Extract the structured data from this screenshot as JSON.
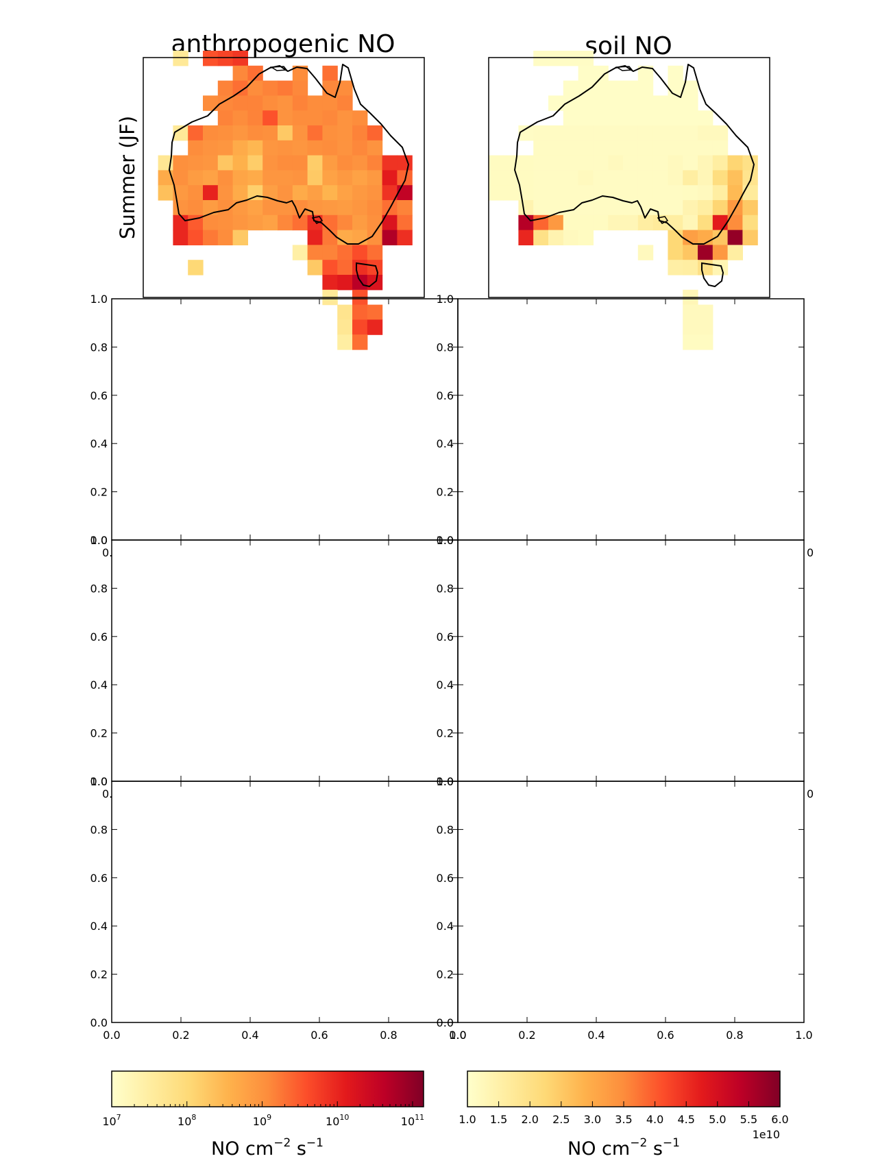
{
  "chart_data": {
    "type": "heatmap",
    "row_label": "Summer (JF)",
    "maps": [
      {
        "title": "anthropogenic NO",
        "scale": "log",
        "colormap": "YlOrRd",
        "range": [
          10000000,
          140000000000
        ],
        "colorbar": {
          "label_main": "NO cm",
          "label_sup1": "−2",
          "label_mid": " s",
          "label_sup2": "−1",
          "ticks": [
            {
              "base": "10",
              "exp": "7",
              "value": 10000000
            },
            {
              "base": "10",
              "exp": "8",
              "value": 100000000
            },
            {
              "base": "10",
              "exp": "9",
              "value": 1000000000
            },
            {
              "base": "10",
              "exp": "10",
              "value": 10000000000
            },
            {
              "base": "10",
              "exp": "11",
              "value": 100000000000
            }
          ],
          "offset": ""
        },
        "grid_note": "rows top to bottom, columns west to east; 0 = no data, 1..1000 = position on log colorbar",
        "grid": [
          [
            0,
            0,
            0,
            150,
            0,
            620,
            650,
            680,
            0,
            0,
            0,
            0,
            0,
            0,
            0,
            0,
            0,
            0,
            0,
            0
          ],
          [
            0,
            0,
            0,
            0,
            0,
            0,
            0,
            510,
            560,
            0,
            0,
            500,
            0,
            560,
            0,
            0,
            0,
            0,
            0,
            0
          ],
          [
            0,
            0,
            0,
            0,
            0,
            0,
            520,
            560,
            500,
            520,
            540,
            510,
            0,
            510,
            500,
            0,
            0,
            0,
            0,
            0
          ],
          [
            0,
            0,
            0,
            0,
            0,
            500,
            510,
            520,
            520,
            500,
            480,
            520,
            500,
            500,
            520,
            0,
            0,
            0,
            0,
            0
          ],
          [
            0,
            0,
            0,
            0,
            0,
            0,
            520,
            500,
            520,
            620,
            480,
            500,
            500,
            510,
            480,
            500,
            0,
            0,
            0,
            0
          ],
          [
            0,
            0,
            0,
            150,
            580,
            500,
            490,
            470,
            500,
            490,
            300,
            480,
            560,
            490,
            480,
            520,
            580,
            0,
            0,
            0
          ],
          [
            0,
            0,
            0,
            0,
            500,
            480,
            470,
            400,
            360,
            470,
            480,
            470,
            490,
            500,
            480,
            510,
            480,
            0,
            0,
            0
          ],
          [
            0,
            0,
            160,
            490,
            480,
            470,
            310,
            380,
            290,
            480,
            500,
            500,
            290,
            450,
            500,
            480,
            520,
            690,
            690,
            0
          ],
          [
            0,
            0,
            400,
            490,
            450,
            430,
            490,
            420,
            400,
            470,
            470,
            480,
            300,
            430,
            460,
            430,
            460,
            750,
            580,
            0
          ],
          [
            0,
            0,
            330,
            460,
            490,
            730,
            480,
            400,
            280,
            440,
            480,
            400,
            440,
            370,
            430,
            460,
            480,
            690,
            860,
            0
          ],
          [
            0,
            0,
            0,
            480,
            500,
            450,
            490,
            460,
            430,
            480,
            480,
            500,
            470,
            460,
            450,
            470,
            500,
            560,
            520,
            0
          ],
          [
            0,
            0,
            0,
            720,
            600,
            500,
            490,
            470,
            450,
            430,
            510,
            560,
            700,
            560,
            510,
            450,
            490,
            780,
            560,
            0
          ],
          [
            0,
            0,
            0,
            720,
            620,
            540,
            500,
            300,
            0,
            0,
            0,
            0,
            730,
            540,
            400,
            420,
            490,
            900,
            700,
            0
          ],
          [
            0,
            0,
            0,
            0,
            0,
            0,
            0,
            0,
            0,
            0,
            0,
            110,
            520,
            520,
            560,
            630,
            560,
            0,
            0,
            0
          ],
          [
            0,
            0,
            0,
            0,
            250,
            0,
            0,
            0,
            0,
            0,
            0,
            0,
            300,
            620,
            570,
            700,
            650,
            0,
            0,
            0
          ],
          [
            0,
            0,
            0,
            0,
            0,
            0,
            0,
            0,
            0,
            0,
            0,
            0,
            0,
            730,
            760,
            880,
            780,
            0,
            0,
            0
          ],
          [
            0,
            0,
            0,
            0,
            0,
            0,
            0,
            0,
            0,
            0,
            0,
            0,
            0,
            150,
            0,
            620,
            0,
            0,
            0,
            0
          ],
          [
            0,
            0,
            0,
            0,
            0,
            0,
            0,
            0,
            0,
            0,
            0,
            0,
            0,
            0,
            180,
            580,
            560,
            0,
            0,
            0
          ],
          [
            0,
            0,
            0,
            0,
            0,
            0,
            0,
            0,
            0,
            0,
            0,
            0,
            0,
            0,
            160,
            640,
            720,
            0,
            0,
            0
          ],
          [
            0,
            0,
            0,
            0,
            0,
            0,
            0,
            0,
            0,
            0,
            0,
            0,
            0,
            0,
            120,
            560,
            0,
            0,
            0,
            0
          ]
        ]
      },
      {
        "title": "soil NO",
        "scale": "linear",
        "colormap": "YlOrRd",
        "range": [
          10000000000,
          60000000000
        ],
        "colorbar": {
          "label_main": "NO cm",
          "label_sup1": "−2",
          "label_mid": " s",
          "label_sup2": "−1",
          "ticks": [
            {
              "label": "1.0",
              "value": 1.0
            },
            {
              "label": "1.5",
              "value": 1.5
            },
            {
              "label": "2.0",
              "value": 2.0
            },
            {
              "label": "2.5",
              "value": 2.5
            },
            {
              "label": "3.0",
              "value": 3.0
            },
            {
              "label": "3.5",
              "value": 3.5
            },
            {
              "label": "4.0",
              "value": 4.0
            },
            {
              "label": "4.5",
              "value": 4.5
            },
            {
              "label": "5.0",
              "value": 5.0
            },
            {
              "label": "5.5",
              "value": 5.5
            },
            {
              "label": "6.0",
              "value": 6.0
            }
          ],
          "offset": "1e10"
        },
        "grid_note": "rows top to bottom, columns west to east; 0 = no data, 1..1000 = position on linear colorbar",
        "grid": [
          [
            0,
            0,
            0,
            0,
            20,
            20,
            20,
            20,
            0,
            0,
            0,
            0,
            0,
            0,
            0,
            0,
            0,
            0,
            0,
            0
          ],
          [
            0,
            0,
            0,
            0,
            0,
            0,
            0,
            15,
            15,
            0,
            0,
            15,
            0,
            15,
            0,
            0,
            0,
            0,
            0,
            0
          ],
          [
            0,
            0,
            0,
            0,
            0,
            0,
            15,
            15,
            15,
            15,
            15,
            15,
            0,
            15,
            15,
            0,
            0,
            0,
            0,
            0
          ],
          [
            0,
            0,
            0,
            0,
            0,
            15,
            15,
            15,
            15,
            15,
            15,
            15,
            15,
            15,
            15,
            0,
            0,
            0,
            0,
            0
          ],
          [
            0,
            0,
            0,
            0,
            0,
            0,
            15,
            15,
            15,
            15,
            15,
            15,
            15,
            15,
            15,
            15,
            0,
            0,
            0,
            0
          ],
          [
            0,
            0,
            0,
            20,
            25,
            25,
            25,
            25,
            25,
            25,
            25,
            25,
            25,
            25,
            25,
            40,
            40,
            0,
            0,
            0
          ],
          [
            0,
            0,
            0,
            0,
            25,
            25,
            25,
            25,
            25,
            25,
            25,
            25,
            25,
            25,
            25,
            25,
            25,
            0,
            0,
            0
          ],
          [
            0,
            30,
            30,
            30,
            25,
            25,
            25,
            25,
            25,
            40,
            25,
            25,
            25,
            40,
            25,
            60,
            120,
            260,
            200,
            0
          ],
          [
            0,
            30,
            30,
            30,
            25,
            25,
            25,
            40,
            25,
            25,
            25,
            25,
            25,
            40,
            120,
            60,
            220,
            330,
            180,
            0
          ],
          [
            0,
            30,
            30,
            30,
            25,
            25,
            25,
            25,
            25,
            25,
            25,
            25,
            25,
            25,
            30,
            40,
            120,
            350,
            140,
            0
          ],
          [
            0,
            0,
            0,
            80,
            25,
            25,
            25,
            25,
            25,
            25,
            25,
            25,
            25,
            25,
            80,
            120,
            260,
            460,
            300,
            0
          ],
          [
            0,
            0,
            0,
            890,
            580,
            460,
            30,
            30,
            30,
            60,
            60,
            120,
            140,
            120,
            60,
            220,
            750,
            500,
            220,
            0
          ],
          [
            0,
            0,
            0,
            720,
            200,
            80,
            40,
            30,
            0,
            0,
            0,
            0,
            0,
            250,
            440,
            400,
            310,
            960,
            300,
            0
          ],
          [
            0,
            0,
            0,
            0,
            0,
            0,
            0,
            0,
            0,
            0,
            0,
            40,
            0,
            250,
            310,
            940,
            460,
            120,
            0,
            0
          ],
          [
            0,
            0,
            0,
            0,
            0,
            0,
            0,
            0,
            0,
            0,
            0,
            0,
            0,
            110,
            120,
            200,
            70,
            0,
            0,
            0
          ],
          [
            0,
            0,
            0,
            0,
            0,
            0,
            0,
            0,
            0,
            0,
            0,
            0,
            0,
            0,
            0,
            0,
            0,
            0,
            0,
            0
          ],
          [
            0,
            0,
            0,
            0,
            0,
            0,
            0,
            0,
            0,
            0,
            0,
            0,
            0,
            0,
            60,
            0,
            0,
            0,
            0,
            0
          ],
          [
            0,
            0,
            0,
            0,
            0,
            0,
            0,
            0,
            0,
            0,
            0,
            0,
            0,
            0,
            40,
            40,
            0,
            0,
            0,
            0
          ],
          [
            0,
            0,
            0,
            0,
            0,
            0,
            0,
            0,
            0,
            0,
            0,
            0,
            0,
            0,
            40,
            40,
            0,
            0,
            0,
            0
          ],
          [
            0,
            0,
            0,
            0,
            0,
            0,
            0,
            0,
            0,
            0,
            0,
            0,
            0,
            0,
            30,
            30,
            0,
            0,
            0,
            0
          ]
        ]
      }
    ],
    "empty_axes": {
      "rows": 3,
      "cols": 2,
      "xlim": [
        0,
        1
      ],
      "ylim": [
        0,
        1
      ],
      "xticks": [
        "0.0",
        "0.2",
        "0.4",
        "0.6",
        "0.8",
        "1.0"
      ],
      "yticks": [
        "0.0",
        "0.2",
        "0.4",
        "0.6",
        "0.8",
        "1.0"
      ],
      "overlap_fragments": {
        "left_cut": "0.",
        "right_cut": "0"
      }
    },
    "grid": false,
    "colors": {
      "frame": "#000000",
      "background": "#ffffff"
    }
  }
}
